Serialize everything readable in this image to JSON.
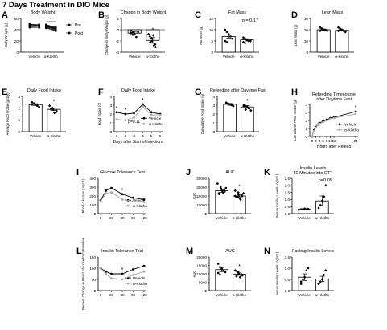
{
  "figure_title": "7 Days Treatment in DIO Mice",
  "chart_data": [
    {
      "letter": "A",
      "type": "paired",
      "title": "Body Weight",
      "ylabel": "Body Weight (g)",
      "ylim": [
        0,
        60
      ],
      "yticks": [
        "0",
        "20",
        "40",
        "60"
      ],
      "categories": [
        "Vehicle",
        "α-Klotho"
      ],
      "legend": [
        "Pre",
        "Post"
      ],
      "sig": "*",
      "pairs": [
        [
          [
            49,
            48
          ],
          [
            47,
            46
          ],
          [
            50,
            49
          ],
          [
            45,
            44
          ],
          [
            48,
            47
          ],
          [
            46,
            46
          ],
          [
            44,
            44
          ]
        ],
        [
          [
            47,
            43
          ],
          [
            46,
            41
          ],
          [
            48,
            43
          ],
          [
            45,
            40
          ],
          [
            44,
            39
          ],
          [
            49,
            44
          ],
          [
            46,
            42
          ],
          [
            43,
            38
          ],
          [
            47,
            41
          ]
        ]
      ]
    },
    {
      "letter": "B",
      "type": "bar",
      "title": "Change in Body Weight",
      "ylabel": "Change in Body Weight (g)",
      "ylim": [
        -4,
        2
      ],
      "yticks": [
        "-4",
        "-2",
        "0",
        "2"
      ],
      "categories": [
        "Vehicle",
        "α-Klotho"
      ],
      "values": [
        -0.6,
        -1.9
      ],
      "errors": [
        0.3,
        0.5
      ],
      "sig": [
        "",
        "*"
      ],
      "points": [
        [
          -0.2,
          -0.5,
          -0.8,
          -1.3,
          -0.4,
          -0.6,
          -0.9
        ],
        [
          -0.8,
          -1.5,
          -2.0,
          -2.6,
          -3.1,
          -1.2,
          -2.2,
          -1.0,
          -2.8
        ]
      ]
    },
    {
      "letter": "C",
      "type": "bar",
      "title": "Fat Mass",
      "ylabel": "Fat Mass (g)",
      "ylim": [
        0,
        15
      ],
      "yticks": [
        "0",
        "5",
        "10",
        "15"
      ],
      "categories": [
        "Vehicle",
        "α-Klotho"
      ],
      "values": [
        7.0,
        5.5
      ],
      "errors": [
        0.7,
        0.5
      ],
      "annotation": "p = 0.17",
      "points": [
        [
          10,
          9,
          8,
          7,
          6,
          5,
          4.5
        ],
        [
          6.5,
          6,
          5.5,
          5,
          5,
          4.5,
          4
        ]
      ]
    },
    {
      "letter": "D",
      "type": "bar",
      "title": "Lean Mass",
      "ylabel": "Lean Mass (g)",
      "ylim": [
        0,
        30
      ],
      "yticks": [
        "0",
        "10",
        "20",
        "30"
      ],
      "categories": [
        "Vehicle",
        "α-Klotho"
      ],
      "values": [
        20,
        19.5
      ],
      "errors": [
        0.6,
        0.7
      ],
      "points": [
        [
          22,
          21,
          20,
          20,
          19,
          19,
          21
        ],
        [
          22,
          21,
          20,
          19,
          18,
          19,
          20
        ]
      ]
    },
    {
      "letter": "E",
      "type": "bar",
      "title": "Daily Food Intake",
      "ylabel": "Average Food Intake (g/day)",
      "ylim": [
        0,
        3
      ],
      "yticks": [
        "0",
        "1",
        "2",
        "3"
      ],
      "categories": [
        "Vehicle",
        "α-Klotho"
      ],
      "values": [
        2.3,
        1.9
      ],
      "errors": [
        0.08,
        0.1
      ],
      "sig": [
        "",
        "*"
      ],
      "points": [
        [
          2.5,
          2.4,
          2.3,
          2.2,
          2.1,
          2.3,
          2.4
        ],
        [
          2.2,
          2.0,
          1.9,
          1.8,
          1.7,
          1.9,
          2.0,
          1.6
        ]
      ]
    },
    {
      "letter": "F",
      "type": "line",
      "title": "Daily Food Intake",
      "ylabel": "Food Intake (g)",
      "xlabel": "Days after Start of Injections",
      "ylim": [
        0,
        4
      ],
      "yticks": [
        "0",
        "1",
        "2",
        "3",
        "4"
      ],
      "x": [
        1,
        2,
        3,
        4,
        5,
        6
      ],
      "xticks": [
        "1",
        "2",
        "3",
        "4",
        "5",
        "6"
      ],
      "annotation": "p=0.11",
      "sig_x": [
        1,
        2,
        4
      ],
      "series": [
        {
          "name": "Vehicle",
          "values": [
            2.2,
            2.0,
            2.1,
            3.1,
            2.2,
            2.0
          ],
          "fill": "#000"
        },
        {
          "name": "α-Klotho",
          "values": [
            1.4,
            1.3,
            1.6,
            2.8,
            1.9,
            1.9
          ],
          "fill": "#aaa"
        }
      ]
    },
    {
      "letter": "G",
      "type": "bar",
      "title": "Refeeding after Daytime Fast",
      "ylabel": "Cumulative Food Intake (g)",
      "ylim": [
        0,
        4
      ],
      "yticks": [
        "0",
        "1",
        "2",
        "3",
        "4"
      ],
      "categories": [
        "Vehicle",
        "α-Klotho"
      ],
      "values": [
        3.1,
        2.8
      ],
      "errors": [
        0.1,
        0.15
      ],
      "sig": [
        "",
        "*"
      ],
      "points": [
        [
          3.3,
          3.2,
          3.1,
          3.0,
          2.9,
          3.2
        ],
        [
          3.0,
          2.9,
          2.8,
          2.6,
          2.4,
          2.9,
          2.5
        ]
      ]
    },
    {
      "letter": "H",
      "type": "line",
      "title": "Refeeding Timecourse",
      "subtitle": "after Daytime Fast",
      "ylabel": "Cumulative Food Intake (g)",
      "xlabel": "Hours after Refeed",
      "ylim": [
        0,
        4
      ],
      "yticks": [
        "0",
        "1",
        "2",
        "3",
        "4"
      ],
      "x": [
        0,
        1,
        2,
        3,
        4,
        6,
        8,
        10,
        12,
        24
      ],
      "xticks": [
        "0",
        "2",
        "4",
        "6",
        "8",
        "10",
        "12",
        "24"
      ],
      "xtick_vals": [
        0,
        2,
        4,
        6,
        8,
        10,
        12,
        24
      ],
      "sig_x": [
        24
      ],
      "series": [
        {
          "name": "Vehicle",
          "values": [
            0,
            0.8,
            1.2,
            1.5,
            1.7,
            1.9,
            2.1,
            2.3,
            2.4,
            3.1
          ],
          "fill": "#000"
        },
        {
          "name": "α-Klotho",
          "values": [
            0,
            0.7,
            1.1,
            1.4,
            1.6,
            1.8,
            2.0,
            2.2,
            2.3,
            2.8
          ],
          "fill": "#aaa"
        }
      ]
    },
    {
      "letter": "I",
      "type": "line",
      "title": "Glucose Tolerance Test",
      "ylabel": "Blood Glucose (mg/dL)",
      "ylim": [
        0,
        400
      ],
      "yticks": [
        "0",
        "100",
        "200",
        "300",
        "400"
      ],
      "x": [
        0,
        15,
        30,
        60,
        90,
        120
      ],
      "xticks": [
        "0",
        "30",
        "60",
        "90",
        "120"
      ],
      "xtick_vals": [
        0,
        30,
        60,
        90,
        120
      ],
      "sig_x": [
        60
      ],
      "series": [
        {
          "name": "Vehicle",
          "values": [
            150,
            260,
            290,
            220,
            180,
            160
          ],
          "fill": "#000"
        },
        {
          "name": "α-Klotho",
          "values": [
            140,
            230,
            240,
            160,
            140,
            130
          ],
          "fill": "#aaa"
        }
      ]
    },
    {
      "letter": "J",
      "type": "bar",
      "title": "AUC",
      "ylabel": "AUC",
      "ylim": [
        0,
        40000
      ],
      "yticks": [
        "0",
        "10000",
        "20000",
        "30000",
        "40000"
      ],
      "categories": [
        "Vehicle",
        "α-Klotho"
      ],
      "values": [
        26000,
        20000
      ],
      "errors": [
        1800,
        1300
      ],
      "sig": [
        "",
        "*"
      ],
      "points": [
        [
          34000,
          30000,
          28000,
          27000,
          25000,
          23000,
          22000,
          26000,
          24000,
          29000
        ],
        [
          26000,
          24000,
          22000,
          21000,
          20000,
          19000,
          18000,
          17000,
          16000,
          23000,
          20000,
          19500
        ]
      ]
    },
    {
      "letter": "K",
      "type": "bar",
      "title": "Insulin Levels",
      "subtitle": "30 Minutes into GTT",
      "ylabel": "Serum Insulin Levels (ng/mL)",
      "ylim": [
        0,
        2.5
      ],
      "yticks": [
        "0.0",
        "0.5",
        "1.0",
        "1.5",
        "2.0",
        "2.5"
      ],
      "categories": [
        "Vehicle",
        "α-Klotho"
      ],
      "values": [
        0.32,
        0.9
      ],
      "errors": [
        0.03,
        0.35
      ],
      "annotation": "p=0.05",
      "points": [
        [
          0.3,
          0.32,
          0.35,
          0.3,
          0.33
        ],
        [
          0.4,
          0.6,
          0.9,
          1.2,
          2.0
        ]
      ]
    },
    {
      "letter": "L",
      "type": "line",
      "title": "Insulin Tolerance Test",
      "ylabel": "Percent Change in Blood Glucose from Baseline",
      "ylim": [
        0,
        150
      ],
      "yticks": [
        "0",
        "50",
        "100",
        "150"
      ],
      "x": [
        0,
        15,
        30,
        60,
        90,
        120
      ],
      "xticks": [
        "0",
        "30",
        "60",
        "90",
        "120"
      ],
      "xtick_vals": [
        0,
        30,
        60,
        90,
        120
      ],
      "sig_x": [
        60
      ],
      "series": [
        {
          "name": "Vehicle",
          "values": [
            100,
            85,
            75,
            75,
            95,
            110
          ],
          "fill": "#000"
        },
        {
          "name": "α-Klotho",
          "values": [
            100,
            75,
            55,
            50,
            70,
            85
          ],
          "fill": "#aaa"
        }
      ]
    },
    {
      "letter": "M",
      "type": "bar",
      "title": "AUC",
      "ylabel": "AUC",
      "ylim": [
        0,
        20000
      ],
      "yticks": [
        "0",
        "5000",
        "10000",
        "15000",
        "20000"
      ],
      "categories": [
        "Vehicle",
        "α-Klotho"
      ],
      "values": [
        12500,
        9800
      ],
      "errors": [
        1200,
        700
      ],
      "sig": [
        "",
        "*"
      ],
      "points": [
        [
          16000,
          14000,
          13000,
          12000,
          11000,
          10500,
          9500
        ],
        [
          12000,
          11000,
          10000,
          9500,
          9000,
          8500,
          11500,
          8000
        ]
      ]
    },
    {
      "letter": "N",
      "type": "bar",
      "title": "Fasting Insulin Levels",
      "ylabel": "Serum Insulin Levels (ng/mL)",
      "ylim": [
        0,
        1.5
      ],
      "yticks": [
        "0.0",
        "0.5",
        "1.0",
        "1.5"
      ],
      "categories": [
        "Vehicle",
        "α-Klotho"
      ],
      "values": [
        0.6,
        0.52
      ],
      "errors": [
        0.15,
        0.12
      ],
      "points": [
        [
          0.3,
          0.5,
          0.6,
          0.9,
          1.0,
          0.4
        ],
        [
          0.3,
          0.4,
          0.5,
          0.7,
          0.9,
          0.3
        ]
      ]
    }
  ]
}
